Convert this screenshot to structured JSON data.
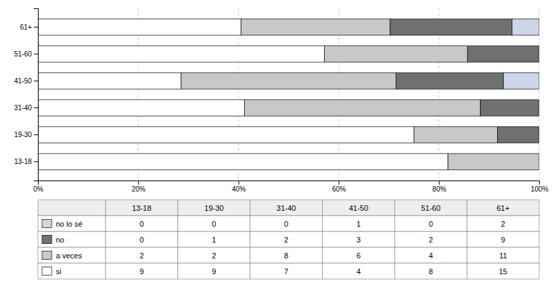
{
  "chart_data": {
    "type": "bar",
    "orientation": "horizontal",
    "stacked": true,
    "grid": true,
    "categories": [
      "13-18",
      "19-30",
      "31-40",
      "41-50",
      "51-60",
      "61+"
    ],
    "xlim": [
      0,
      100
    ],
    "xticks": [
      {
        "value": 0,
        "label": "0%"
      },
      {
        "value": 20,
        "label": "20%"
      },
      {
        "value": 40,
        "label": "40%"
      },
      {
        "value": 60,
        "label": "60%"
      },
      {
        "value": 80,
        "label": "80%"
      },
      {
        "value": 100,
        "label": "100%"
      }
    ],
    "series": [
      {
        "name": "si",
        "color": "#ffffff",
        "values": [
          81.81818181818181,
          75.0,
          41.17647058823529,
          28.571428571428573,
          57.14285714285714,
          40.54054054054054
        ],
        "counts": [
          9,
          9,
          7,
          4,
          8,
          15
        ]
      },
      {
        "name": "a veces",
        "color": "#c8c8c8",
        "values": [
          18.181818181818183,
          16.666666666666664,
          47.05882352941176,
          42.857142857142854,
          28.571428571428573,
          29.72972972972973
        ],
        "counts": [
          2,
          2,
          8,
          6,
          4,
          11
        ]
      },
      {
        "name": "no",
        "color": "#707070",
        "values": [
          0.0,
          8.333333333333332,
          11.76470588235294,
          21.428571428571427,
          14.285714285714285,
          24.324324324324326
        ],
        "counts": [
          0,
          1,
          2,
          3,
          2,
          9
        ]
      },
      {
        "name": "no lo sé",
        "color": "#cdd5e8",
        "values": [
          0.0,
          0.0,
          0.0,
          7.142857142857142,
          0.0,
          5.405405405405405
        ],
        "counts": [
          0,
          0,
          0,
          1,
          0,
          2
        ]
      }
    ]
  }
}
